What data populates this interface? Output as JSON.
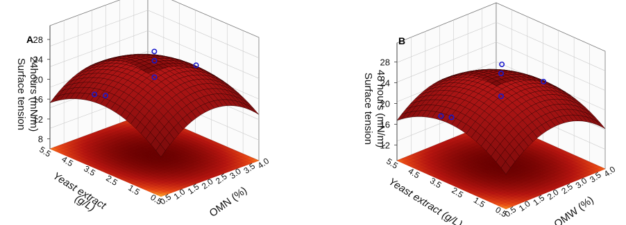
{
  "chart_data": [
    {
      "type": "surface",
      "panel_label": "A",
      "zlabel_lines": [
        "Surface tension",
        "24hours (mN/m)"
      ],
      "xlabel": "OMN (%)",
      "ylabel_lines": [
        "Yeast extract",
        "(g/L)"
      ],
      "z_ticks": [
        "8",
        "12",
        "16",
        "20",
        "24",
        "28"
      ],
      "x_ticks": [
        "0.5",
        "1.0",
        "1.5",
        "2.0",
        "2.5",
        "3.0",
        "3.5",
        "4.0"
      ],
      "y_ticks": [
        "0.5",
        "1.5",
        "2.5",
        "3.5",
        "4.5",
        "5.5"
      ],
      "zlim": [
        6,
        28
      ],
      "xlim": [
        0.5,
        4.0
      ],
      "ylim": [
        0.5,
        5.5
      ],
      "surface_model": {
        "peak_x": 2.25,
        "peak_y": 3.0,
        "peak_z": 24.5,
        "curv_x": 1.7,
        "curv_y": 0.75,
        "interaction": -0.15
      },
      "points": [
        {
          "x": 2.25,
          "y": 3.0,
          "z": 24.9
        },
        {
          "x": 2.25,
          "y": 3.0,
          "z": 21.6
        },
        {
          "x": 0.5,
          "y": 3.0,
          "z": 21.5
        },
        {
          "x": 0.9,
          "y": 4.0,
          "z": 19.0
        },
        {
          "x": 3.2,
          "y": 4.2,
          "z": 22.5
        },
        {
          "x": 3.9,
          "y": 3.2,
          "z": 20.2
        }
      ],
      "colors": {
        "surface": "#a01010",
        "surface_edge": "#2a0000",
        "points": "#1a1acc"
      }
    },
    {
      "type": "surface",
      "panel_label": "B",
      "zlabel_lines": [
        "Surface tension",
        "48 hours (mN/m)"
      ],
      "xlabel": "OMW (%)",
      "ylabel_lines": [
        "Yeast extract (g/L)"
      ],
      "z_ticks": [
        "12",
        "16",
        "20",
        "24",
        "28"
      ],
      "x_ticks": [
        "0.5",
        "1.0",
        "1.5",
        "2.0",
        "2.5",
        "3.0",
        "3.5",
        "4.0"
      ],
      "y_ticks": [
        "0.5",
        "1.5",
        "2.5",
        "3.5",
        "4.5",
        "5.5"
      ],
      "zlim": [
        9,
        29
      ],
      "xlim": [
        0.5,
        4.0
      ],
      "ylim": [
        0.5,
        5.5
      ],
      "surface_model": {
        "peak_x": 2.25,
        "peak_y": 3.0,
        "peak_z": 25.5,
        "curv_x": 1.6,
        "curv_y": 0.7,
        "interaction": -0.12
      },
      "points": [
        {
          "x": 2.25,
          "y": 3.0,
          "z": 26.6
        },
        {
          "x": 2.25,
          "y": 3.0,
          "z": 22.2
        },
        {
          "x": 0.5,
          "y": 3.0,
          "z": 22.0
        },
        {
          "x": 0.9,
          "y": 4.0,
          "z": 19.5
        },
        {
          "x": 3.2,
          "y": 4.2,
          "z": 24.0
        },
        {
          "x": 3.9,
          "y": 3.2,
          "z": 21.0
        }
      ],
      "colors": {
        "surface": "#a01010",
        "surface_edge": "#2a0000",
        "points": "#1a1acc"
      }
    }
  ]
}
